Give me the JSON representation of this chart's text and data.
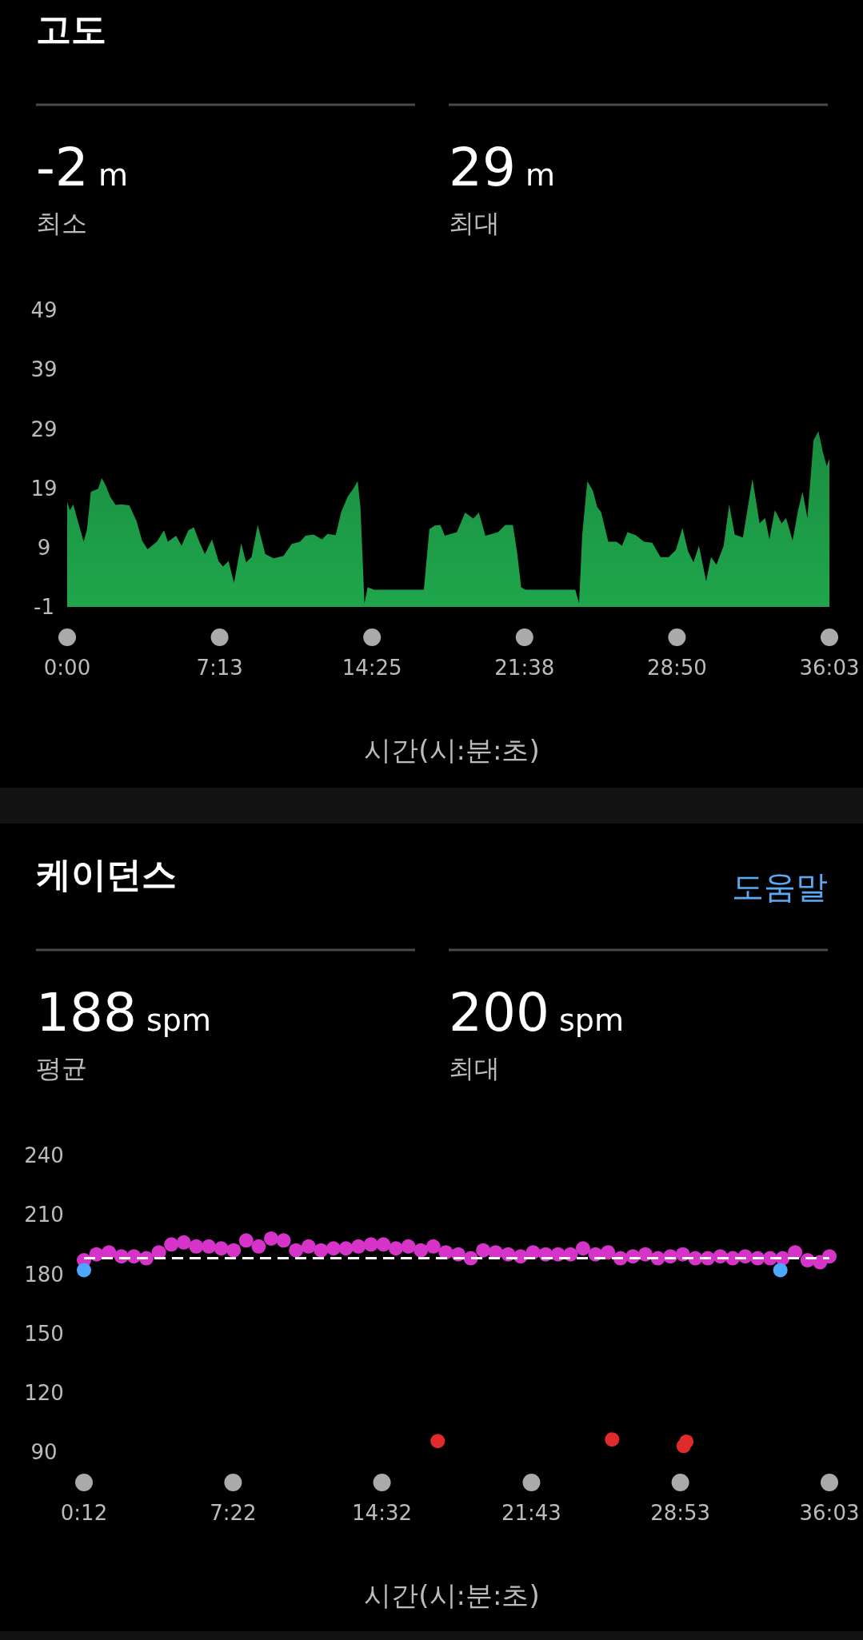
{
  "chart_data": [
    {
      "type": "area",
      "title": "고도",
      "xlabel": "시간(시:분:초)",
      "annotations": [
        "-2 m",
        "최소",
        "29 m",
        "최대"
      ],
      "color": "#1fa64c",
      "grid": false,
      "xlim": [
        0,
        36.05
      ],
      "xticks": [
        {
          "value": 0,
          "label": "0:00"
        },
        {
          "value": 7.21,
          "label": "7:13"
        },
        {
          "value": 14.42,
          "label": "14:25"
        },
        {
          "value": 21.63,
          "label": "21:38"
        },
        {
          "value": 28.84,
          "label": "28:50"
        },
        {
          "value": 36.05,
          "label": "36:03"
        }
      ],
      "ylim": [
        -1,
        49
      ],
      "yticks": [
        -1,
        9,
        19,
        29,
        39,
        49
      ],
      "x": [
        0,
        0.13,
        0.29,
        0.47,
        0.78,
        0.94,
        1.12,
        1.46,
        1.64,
        1.82,
        2.03,
        2.29,
        2.55,
        2.94,
        3.28,
        3.54,
        3.8,
        4.24,
        4.58,
        4.76,
        5.15,
        5.41,
        5.73,
        5.99,
        6.25,
        6.51,
        6.85,
        7.16,
        7.37,
        7.63,
        7.89,
        8.23,
        8.46,
        8.72,
        9.01,
        9.37,
        9.76,
        10.23,
        10.62,
        11.01,
        11.27,
        11.66,
        12.05,
        12.31,
        12.7,
        12.96,
        13.27,
        13.53,
        13.74,
        13.87,
        14.06,
        14.21,
        14.52,
        16.87,
        17.13,
        17.39,
        17.65,
        17.86,
        18.43,
        18.82,
        19.21,
        19.47,
        19.78,
        20.38,
        20.72,
        21.08,
        21.29,
        21.47,
        21.68,
        24.03,
        24.21,
        24.36,
        24.6,
        24.86,
        25.07,
        25.25,
        25.59,
        25.98,
        26.24,
        26.5,
        26.89,
        27.28,
        27.67,
        28.06,
        28.45,
        28.79,
        29.1,
        29.36,
        29.62,
        29.88,
        30.22,
        30.45,
        30.71,
        31.05,
        31.31,
        31.57,
        31.96,
        32.41,
        32.75,
        33.01,
        33.21,
        33.47,
        33.79,
        34,
        34.31,
        34.57,
        34.78,
        35.01,
        35.3,
        35.53,
        35.74,
        35.92,
        36.05
      ],
      "values": [
        16.7,
        15.3,
        16.3,
        13.9,
        10,
        12.1,
        18.4,
        18.9,
        20.7,
        19.5,
        17.6,
        16.2,
        16.3,
        16.1,
        13.5,
        10.2,
        8.7,
        10,
        11.9,
        10,
        11,
        9.3,
        11.9,
        12.4,
        10,
        7.9,
        10.4,
        6.7,
        5.8,
        6.7,
        3,
        9.7,
        6.5,
        7.4,
        12.8,
        7.9,
        7.2,
        7.6,
        9.6,
        10,
        11,
        11.2,
        10.4,
        11.3,
        11.1,
        15,
        17.6,
        18.9,
        20.2,
        15.8,
        -0.4,
        2.3,
        1.9,
        1.9,
        12.1,
        12.7,
        12.8,
        11,
        11.6,
        14.9,
        13.9,
        14.9,
        11,
        11.6,
        12.8,
        12.8,
        7.9,
        2.3,
        1.9,
        1.9,
        -0.4,
        11.2,
        20.2,
        18.6,
        15.8,
        15,
        10,
        10,
        9.3,
        11.6,
        11.1,
        10,
        9.8,
        7.4,
        7.4,
        8.6,
        12.3,
        8.4,
        6.5,
        9.3,
        3.3,
        7.4,
        6.1,
        9.3,
        16.3,
        11.2,
        10.7,
        20.6,
        13.1,
        14,
        10.4,
        15.3,
        13.1,
        14,
        10.2,
        15.3,
        18.4,
        14,
        27.1,
        28.6,
        25.1,
        22.7,
        24
      ]
    },
    {
      "type": "scatter",
      "title": "케이던스",
      "xlabel": "시간(시:분:초)",
      "annotations": [
        "188 spm",
        "평균",
        "200 spm",
        "최대",
        "도움말"
      ],
      "grid": false,
      "marker": "circle",
      "xlim": [
        0.2,
        36.05
      ],
      "xticks": [
        {
          "value": 0.2,
          "label": "0:12"
        },
        {
          "value": 7.37,
          "label": "7:22"
        },
        {
          "value": 14.53,
          "label": "14:32"
        },
        {
          "value": 21.72,
          "label": "21:43"
        },
        {
          "value": 28.88,
          "label": "28:53"
        },
        {
          "value": 36.05,
          "label": "36:03"
        }
      ],
      "ylim": [
        90,
        240
      ],
      "yticks": [
        90,
        120,
        150,
        180,
        210,
        240
      ],
      "ref_lines": [
        {
          "axis": "y",
          "value": 188,
          "color": "#ffffff",
          "line_style": "dashed"
        }
      ],
      "series": [
        {
          "color": "#d633c8",
          "x": [
            0.2,
            0.8,
            1.4,
            2.0,
            2.6,
            3.2,
            3.8,
            4.4,
            5.0,
            5.6,
            6.2,
            6.8,
            7.4,
            8.0,
            8.6,
            9.2,
            9.8,
            10.4,
            11.0,
            11.6,
            12.2,
            12.8,
            13.4,
            14.0,
            14.6,
            15.2,
            15.8,
            16.4,
            17.0,
            17.6,
            18.2,
            18.8,
            19.4,
            20.0,
            20.6,
            21.2,
            21.8,
            22.4,
            23.0,
            23.6,
            24.2,
            24.8,
            25.4,
            26.0,
            26.6,
            27.2,
            27.8,
            28.4,
            29.0,
            29.6,
            30.2,
            30.8,
            31.4,
            32.0,
            32.6,
            33.2,
            33.8,
            34.4,
            35.0,
            35.6,
            36.05
          ],
          "values": [
            187,
            190,
            191,
            189,
            189,
            188,
            191,
            195,
            196,
            194,
            194,
            193,
            192,
            197,
            194,
            198,
            197,
            192,
            194,
            192,
            193,
            193,
            194,
            195,
            195,
            193,
            194,
            192,
            194,
            191,
            190,
            188,
            192,
            191,
            190,
            189,
            191,
            190,
            190,
            190,
            193,
            190,
            191,
            188,
            189,
            190,
            188,
            189,
            190,
            188,
            188,
            189,
            188,
            189,
            188,
            188,
            188,
            191,
            187,
            186,
            189
          ]
        },
        {
          "color": "#4da6ff",
          "x": [
            0.2,
            33.69
          ],
          "values": [
            182,
            182
          ]
        },
        {
          "color": "#e02b2b",
          "x": [
            17.21,
            25.6,
            29.04,
            29.17
          ],
          "values": [
            95.6,
            96.4,
            93.1,
            95.3
          ]
        }
      ]
    }
  ]
}
